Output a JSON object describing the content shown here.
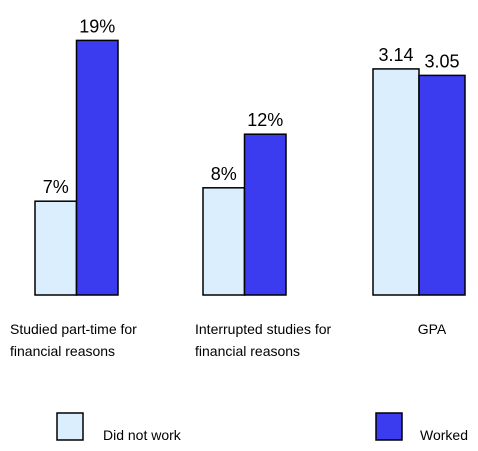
{
  "chart_data": {
    "type": "bar",
    "categories": [
      "Studied part-time for financial reasons",
      "Interrupted studies for financial reasons",
      "GPA"
    ],
    "series": [
      {
        "name": "Did not work",
        "color": "#dbeefe",
        "values": [
          7,
          8,
          3.14
        ],
        "value_labels": [
          "7%",
          "8%",
          "3.14"
        ]
      },
      {
        "name": "Worked",
        "color": "#3b3bf0",
        "values": [
          19,
          12,
          3.05
        ],
        "value_labels": [
          "19%",
          "12%",
          "3.05"
        ]
      }
    ]
  }
}
